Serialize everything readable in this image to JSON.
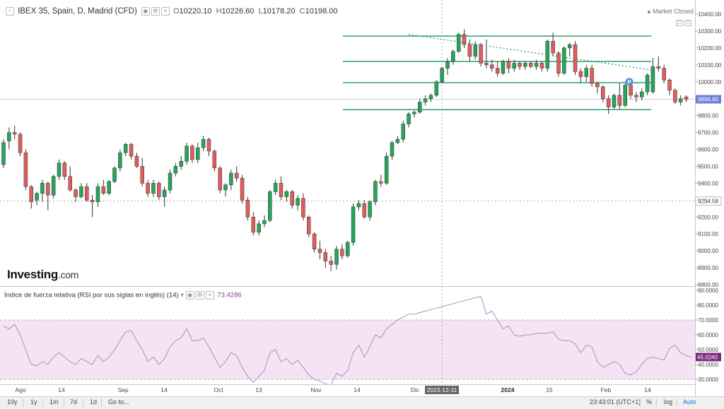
{
  "header": {
    "symbol": "IBEX 35, Spain, D, Madrid (CFD)",
    "open_label": "O",
    "open": "10220.10",
    "high_label": "H",
    "high": "10226.60",
    "low_label": "L",
    "low": "10178.20",
    "close_label": "C",
    "close": "10198.00",
    "market_status": "Market Closed"
  },
  "logo": {
    "name": "Investing",
    "suffix": ".com"
  },
  "rsi": {
    "title": "Índice de fuerza relativa (RSI por sus siglas en inglés) (14)",
    "value": "73.4286",
    "current_label": "45.0240",
    "ticks": [
      "90.0000",
      "80.0000",
      "70.0000",
      "60.0000",
      "50.0000",
      "40.0000",
      "30.0000"
    ],
    "band": [
      30,
      70
    ],
    "color": "#b38bc6",
    "band_color": "#f3e3f3"
  },
  "price_axis": {
    "ticks": [
      "10400.00",
      "10300.00",
      "10200.00",
      "10100.00",
      "10000.00",
      "9900.00",
      "9800.00",
      "9700.00",
      "9600.00",
      "9500.00",
      "9400.00",
      "9300.00",
      "9200.00",
      "9100.00",
      "9000.00",
      "8900.00",
      "8800.00"
    ],
    "current_price_label": "9896.60",
    "crosshair_price_label": "9294.58"
  },
  "time_axis": {
    "labels": [
      "Ago",
      "14",
      "Sep",
      "14",
      "Oct",
      "13",
      "Nov",
      "14",
      "Dic",
      "2024",
      "15",
      "Feb",
      "14"
    ],
    "crosshair_date_label": "2023-12-11"
  },
  "bottom_bar": {
    "ranges": [
      "10y",
      "1y",
      "1m",
      "7d",
      "1d"
    ],
    "goto": "Go to...",
    "clock": "23:43:01 (UTC+1)",
    "percent": "%",
    "log": "log",
    "auto": "Auto"
  },
  "annotations": {
    "p_badge": "P",
    "horizontal_levels": [
      10270,
      10120,
      9995,
      9835
    ],
    "trendline": {
      "from": {
        "date": "2023-12-01",
        "price": 10280
      },
      "to": {
        "date": "2024-02-20",
        "price": 10070
      }
    },
    "level_color": "#2e9e6e"
  },
  "colors": {
    "up": "#26a65b",
    "down": "#e05d5d",
    "price_badge": "#6c7fd8",
    "rsi_badge": "#7a2c7a"
  },
  "chart_data": [
    {
      "type": "candlestick",
      "title": "IBEX 35, Spain, D, Madrid (CFD)",
      "ylim": [
        8800,
        10400
      ],
      "series": [
        {
          "name": "IBEX 35",
          "ohlc": [
            [
              9510,
              9660,
              9490,
              9640
            ],
            [
              9650,
              9730,
              9600,
              9700
            ],
            [
              9700,
              9740,
              9660,
              9690
            ],
            [
              9690,
              9700,
              9560,
              9580
            ],
            [
              9580,
              9600,
              9360,
              9380
            ],
            [
              9380,
              9390,
              9250,
              9290
            ],
            [
              9300,
              9350,
              9270,
              9340
            ],
            [
              9340,
              9420,
              9290,
              9400
            ],
            [
              9400,
              9410,
              9240,
              9330
            ],
            [
              9330,
              9450,
              9310,
              9440
            ],
            [
              9440,
              9540,
              9420,
              9520
            ],
            [
              9520,
              9530,
              9420,
              9440
            ],
            [
              9440,
              9500,
              9350,
              9360
            ],
            [
              9360,
              9370,
              9290,
              9320
            ],
            [
              9320,
              9400,
              9310,
              9380
            ],
            [
              9380,
              9400,
              9290,
              9300
            ],
            [
              9300,
              9330,
              9200,
              9290
            ],
            [
              9290,
              9400,
              9260,
              9380
            ],
            [
              9380,
              9420,
              9330,
              9340
            ],
            [
              9340,
              9420,
              9330,
              9410
            ],
            [
              9410,
              9500,
              9400,
              9490
            ],
            [
              9490,
              9600,
              9470,
              9580
            ],
            [
              9580,
              9640,
              9560,
              9630
            ],
            [
              9630,
              9640,
              9540,
              9560
            ],
            [
              9560,
              9580,
              9490,
              9500
            ],
            [
              9500,
              9550,
              9380,
              9400
            ],
            [
              9400,
              9420,
              9320,
              9340
            ],
            [
              9340,
              9420,
              9320,
              9400
            ],
            [
              9400,
              9410,
              9300,
              9320
            ],
            [
              9320,
              9380,
              9260,
              9360
            ],
            [
              9360,
              9480,
              9340,
              9460
            ],
            [
              9460,
              9520,
              9440,
              9500
            ],
            [
              9500,
              9560,
              9480,
              9530
            ],
            [
              9530,
              9640,
              9510,
              9620
            ],
            [
              9620,
              9630,
              9520,
              9540
            ],
            [
              9540,
              9640,
              9520,
              9610
            ],
            [
              9610,
              9680,
              9590,
              9660
            ],
            [
              9660,
              9670,
              9560,
              9590
            ],
            [
              9590,
              9600,
              9470,
              9490
            ],
            [
              9490,
              9500,
              9340,
              9360
            ],
            [
              9360,
              9400,
              9320,
              9390
            ],
            [
              9390,
              9480,
              9360,
              9460
            ],
            [
              9460,
              9500,
              9410,
              9430
            ],
            [
              9430,
              9450,
              9280,
              9300
            ],
            [
              9300,
              9320,
              9180,
              9200
            ],
            [
              9200,
              9230,
              9090,
              9110
            ],
            [
              9110,
              9180,
              9090,
              9160
            ],
            [
              9160,
              9210,
              9140,
              9180
            ],
            [
              9180,
              9360,
              9170,
              9350
            ],
            [
              9350,
              9420,
              9330,
              9400
            ],
            [
              9400,
              9440,
              9300,
              9320
            ],
            [
              9320,
              9360,
              9290,
              9350
            ],
            [
              9350,
              9360,
              9250,
              9270
            ],
            [
              9270,
              9330,
              9240,
              9310
            ],
            [
              9310,
              9340,
              9180,
              9200
            ],
            [
              9200,
              9210,
              9080,
              9100
            ],
            [
              9100,
              9110,
              8990,
              9010
            ],
            [
              9010,
              9060,
              8950,
              8990
            ],
            [
              8990,
              9010,
              8900,
              8940
            ],
            [
              8940,
              8970,
              8880,
              8920
            ],
            [
              8920,
              9030,
              8890,
              9010
            ],
            [
              9010,
              9040,
              8950,
              8970
            ],
            [
              8970,
              9060,
              8960,
              9050
            ],
            [
              9050,
              9280,
              9030,
              9260
            ],
            [
              9260,
              9300,
              9240,
              9280
            ],
            [
              9280,
              9300,
              9190,
              9200
            ],
            [
              9200,
              9300,
              9180,
              9290
            ],
            [
              9290,
              9420,
              9270,
              9410
            ],
            [
              9410,
              9450,
              9380,
              9400
            ],
            [
              9400,
              9580,
              9390,
              9560
            ],
            [
              9560,
              9650,
              9540,
              9640
            ],
            [
              9640,
              9680,
              9630,
              9660
            ],
            [
              9660,
              9770,
              9640,
              9750
            ],
            [
              9750,
              9820,
              9730,
              9810
            ],
            [
              9810,
              9830,
              9790,
              9820
            ],
            [
              9820,
              9900,
              9810,
              9880
            ],
            [
              9880,
              9920,
              9860,
              9900
            ],
            [
              9900,
              9930,
              9880,
              9920
            ],
            [
              9920,
              10010,
              9910,
              10000
            ],
            [
              10000,
              10090,
              9990,
              10080
            ],
            [
              10080,
              10140,
              10040,
              10120
            ],
            [
              10120,
              10190,
              10100,
              10180
            ],
            [
              10180,
              10290,
              10170,
              10280
            ],
            [
              10280,
              10310,
              10200,
              10220
            ],
            [
              10220,
              10250,
              10120,
              10150
            ],
            [
              10150,
              10240,
              10130,
              10220
            ],
            [
              10220,
              10230,
              10090,
              10110
            ],
            [
              10110,
              10250,
              10080,
              10100
            ],
            [
              10100,
              10130,
              10060,
              10080
            ],
            [
              10080,
              10120,
              10030,
              10050
            ],
            [
              10050,
              10130,
              10040,
              10120
            ],
            [
              10120,
              10140,
              10050,
              10080
            ],
            [
              10080,
              10130,
              10060,
              10110
            ],
            [
              10110,
              10120,
              10070,
              10090
            ],
            [
              10090,
              10120,
              10070,
              10110
            ],
            [
              10110,
              10120,
              10080,
              10090
            ],
            [
              10090,
              10130,
              10070,
              10110
            ],
            [
              10110,
              10120,
              10060,
              10080
            ],
            [
              10080,
              10250,
              10060,
              10240
            ],
            [
              10240,
              10290,
              10150,
              10170
            ],
            [
              10170,
              10180,
              10030,
              10050
            ],
            [
              10050,
              10210,
              10040,
              10200
            ],
            [
              10200,
              10230,
              10150,
              10220
            ],
            [
              10220,
              10240,
              10040,
              10060
            ],
            [
              10060,
              10080,
              9990,
              10030
            ],
            [
              10030,
              10100,
              10000,
              10080
            ],
            [
              10080,
              10100,
              9970,
              9990
            ],
            [
              9990,
              10000,
              9930,
              9970
            ],
            [
              9970,
              9980,
              9880,
              9900
            ],
            [
              9900,
              9920,
              9810,
              9850
            ],
            [
              9850,
              9930,
              9840,
              9920
            ],
            [
              9920,
              9990,
              9840,
              9860
            ],
            [
              9860,
              9990,
              9850,
              9980
            ],
            [
              9980,
              10000,
              9900,
              9920
            ],
            [
              9920,
              9940,
              9880,
              9910
            ],
            [
              9910,
              9960,
              9890,
              9940
            ],
            [
              9940,
              10050,
              9920,
              10040
            ],
            [
              9940,
              10140,
              9930,
              10090
            ],
            [
              10090,
              10150,
              10060,
              10080
            ],
            [
              10080,
              10100,
              9990,
              10010
            ],
            [
              10010,
              10020,
              9920,
              9950
            ],
            [
              9950,
              9960,
              9870,
              9880
            ],
            [
              9880,
              9920,
              9860,
              9900
            ],
            [
              9910,
              9920,
              9880,
              9896
            ]
          ]
        }
      ]
    },
    {
      "type": "line",
      "title": "Índice de fuerza relativa (RSI por sus siglas en inglés) (14)",
      "ylim": [
        25,
        92
      ],
      "series": [
        {
          "name": "RSI (14)",
          "values": [
            66,
            64,
            67,
            60,
            50,
            40,
            39,
            42,
            40,
            45,
            48,
            45,
            42,
            40,
            44,
            42,
            40,
            46,
            42,
            45,
            50,
            56,
            62,
            63,
            56,
            50,
            42,
            45,
            40,
            44,
            52,
            56,
            58,
            64,
            56,
            56,
            58,
            52,
            45,
            38,
            42,
            48,
            46,
            38,
            32,
            28,
            32,
            36,
            48,
            50,
            42,
            44,
            40,
            43,
            38,
            33,
            30,
            29,
            27,
            26,
            34,
            32,
            36,
            48,
            53,
            45,
            52,
            60,
            58,
            64,
            67,
            70,
            72,
            74,
            74,
            75,
            76,
            77,
            78,
            79,
            80,
            81,
            82,
            83,
            84,
            85,
            86,
            74,
            76,
            70,
            64,
            66,
            60,
            59,
            60,
            60,
            61,
            61,
            61,
            62,
            57,
            56,
            56,
            54,
            48,
            53,
            52,
            42,
            38,
            40,
            42,
            40,
            34,
            33,
            35,
            40,
            44,
            45,
            44,
            43,
            51,
            53,
            48,
            46,
            45
          ]
        }
      ]
    }
  ]
}
